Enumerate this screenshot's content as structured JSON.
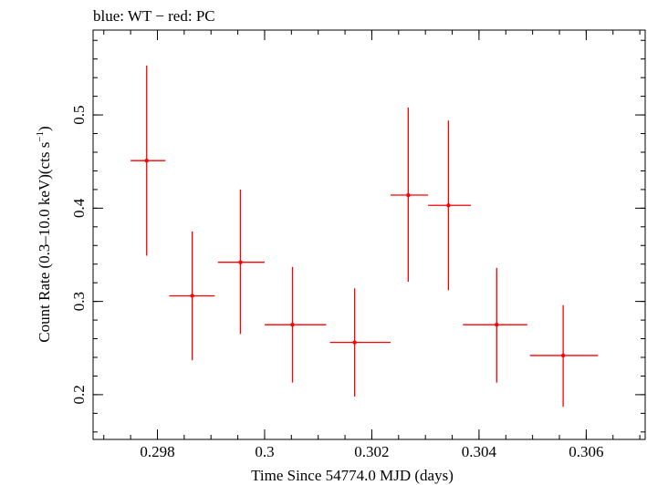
{
  "chart_data": {
    "type": "scatter",
    "title": "blue: WT − red: PC",
    "xlabel": "Time Since 54774.0 MJD (days)",
    "ylabel_main": "Count Rate (0.3–10.0 keV)(cts s",
    "ylabel_sup": "−1",
    "ylabel_end": ")",
    "xlim": [
      0.2968,
      0.3071
    ],
    "ylim": [
      0.152,
      0.591
    ],
    "x_ticks": [
      {
        "value": 0.298,
        "label": "0.298"
      },
      {
        "value": 0.3,
        "label": "0.3"
      },
      {
        "value": 0.302,
        "label": "0.302"
      },
      {
        "value": 0.304,
        "label": "0.304"
      },
      {
        "value": 0.306,
        "label": "0.306"
      }
    ],
    "y_ticks": [
      {
        "value": 0.2,
        "label": "0.2"
      },
      {
        "value": 0.3,
        "label": "0.3"
      },
      {
        "value": 0.4,
        "label": "0.4"
      },
      {
        "value": 0.5,
        "label": "0.5"
      }
    ],
    "x_minor_step": 0.0005,
    "y_minor_step": 0.02,
    "grid": false,
    "series": [
      {
        "color": "#ff0000",
        "points": [
          {
            "x": 0.2978,
            "xlo": 0.2975,
            "xhi": 0.29815,
            "y": 0.451,
            "ylo": 0.349,
            "yhi": 0.553
          },
          {
            "x": 0.29865,
            "xlo": 0.29822,
            "xhi": 0.29907,
            "y": 0.306,
            "ylo": 0.237,
            "yhi": 0.375
          },
          {
            "x": 0.29955,
            "xlo": 0.29913,
            "xhi": 0.3,
            "y": 0.342,
            "ylo": 0.265,
            "yhi": 0.42
          },
          {
            "x": 0.30052,
            "xlo": 0.3,
            "xhi": 0.30115,
            "y": 0.275,
            "ylo": 0.213,
            "yhi": 0.337
          },
          {
            "x": 0.30168,
            "xlo": 0.30122,
            "xhi": 0.30235,
            "y": 0.256,
            "ylo": 0.198,
            "yhi": 0.314
          },
          {
            "x": 0.30268,
            "xlo": 0.30235,
            "xhi": 0.30305,
            "y": 0.414,
            "ylo": 0.321,
            "yhi": 0.508
          },
          {
            "x": 0.30343,
            "xlo": 0.30305,
            "xhi": 0.30385,
            "y": 0.403,
            "ylo": 0.312,
            "yhi": 0.494
          },
          {
            "x": 0.30433,
            "xlo": 0.3037,
            "xhi": 0.3049,
            "y": 0.275,
            "ylo": 0.213,
            "yhi": 0.336
          },
          {
            "x": 0.30557,
            "xlo": 0.30495,
            "xhi": 0.30622,
            "y": 0.242,
            "ylo": 0.187,
            "yhi": 0.296
          }
        ]
      }
    ]
  }
}
